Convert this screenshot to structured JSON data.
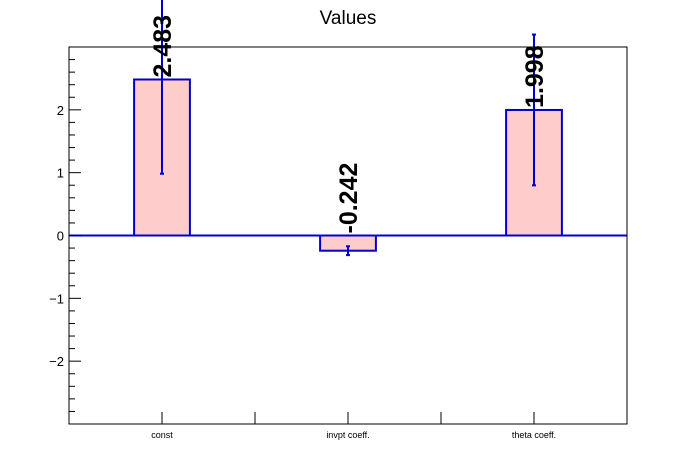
{
  "chart_data": {
    "type": "bar",
    "title": "Values",
    "categories": [
      "const",
      "invpt coeff.",
      "theta coeff."
    ],
    "values": [
      2.483,
      -0.242,
      1.998
    ],
    "value_labels": [
      "2.483",
      "-0.242",
      "1.998"
    ],
    "errors": [
      1.5,
      0.07,
      1.2
    ],
    "ylim": [
      -3,
      3
    ],
    "yticks": [
      -2,
      -1,
      0,
      1,
      2
    ],
    "ytick_labels": [
      "−2",
      "−1",
      "0",
      "1",
      "2"
    ],
    "xlabel": "",
    "ylabel": "",
    "grid": false,
    "bar_fill": "#ffcccc",
    "bar_edge": "#0000cc"
  }
}
